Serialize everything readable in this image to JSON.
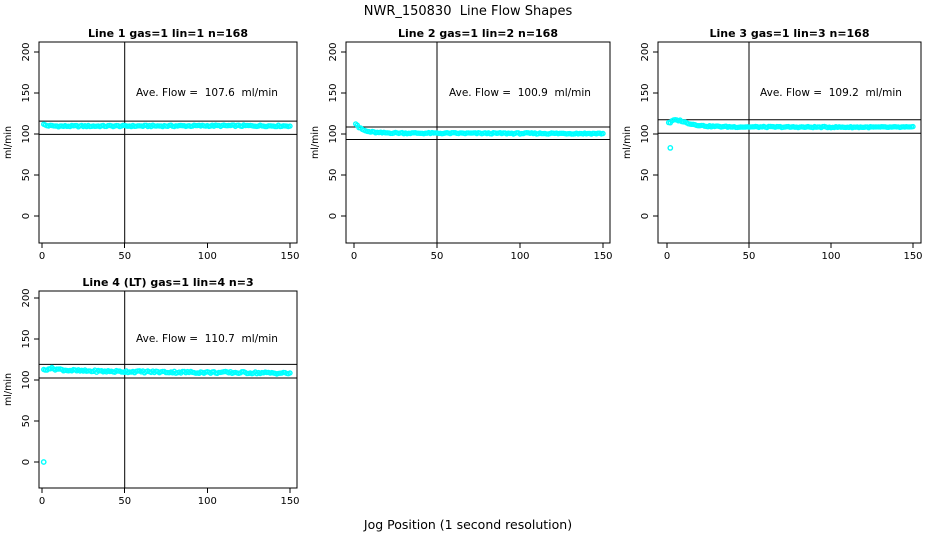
{
  "title": "NWR_150830  Line Flow Shapes",
  "xlabel": "Jog Position (1 second resolution)",
  "colors": {
    "points": "#00ffff",
    "axis": "#000000",
    "background": "#ffffff"
  },
  "axes": {
    "ylabel": "ml/min",
    "x_ticks": [
      0,
      50,
      100,
      150
    ],
    "y_ticks": [
      0,
      50,
      100,
      150,
      200
    ],
    "x_range": [
      0,
      150
    ],
    "y_range": [
      0,
      200
    ],
    "vline_x": 50
  },
  "chart_data": [
    {
      "type": "scatter",
      "title": "Line 1 gas=1 lin=1 n=168",
      "annotation": "Ave. Flow =  107.6  ml/min",
      "ave_flow": 107.6,
      "n": 168,
      "hlines": [
        115.7,
        99.5
      ],
      "vline": 50,
      "anchors": [
        [
          1,
          111.5
        ],
        [
          3,
          110.2
        ],
        [
          10,
          109.6
        ],
        [
          60,
          109.8
        ],
        [
          110,
          110.1
        ],
        [
          150,
          109.9
        ]
      ],
      "outliers": [],
      "noise": 0.9
    },
    {
      "type": "scatter",
      "title": "Line 2 gas=1 lin=2 n=168",
      "annotation": "Ave. Flow =  100.9  ml/min",
      "ave_flow": 100.9,
      "n": 168,
      "hlines": [
        108.5,
        93.3
      ],
      "vline": 50,
      "anchors": [
        [
          1,
          113
        ],
        [
          2,
          111
        ],
        [
          3,
          108
        ],
        [
          5,
          105.5
        ],
        [
          8,
          103
        ],
        [
          15,
          101.5
        ],
        [
          40,
          101
        ],
        [
          90,
          100.8
        ],
        [
          150,
          100.6
        ]
      ],
      "outliers": [],
      "noise": 0.8
    },
    {
      "type": "scatter",
      "title": "Line 3 gas=1 lin=3 n=168",
      "annotation": "Ave. Flow =  109.2  ml/min",
      "ave_flow": 109.2,
      "n": 168,
      "hlines": [
        117.4,
        101.0
      ],
      "vline": 50,
      "anchors": [
        [
          2,
          114
        ],
        [
          4,
          117
        ],
        [
          8,
          116.5
        ],
        [
          12,
          113.5
        ],
        [
          18,
          111
        ],
        [
          25,
          109.5
        ],
        [
          40,
          108.7
        ],
        [
          90,
          108.4
        ],
        [
          150,
          108.3
        ]
      ],
      "outliers": [
        [
          2,
          83
        ]
      ],
      "noise": 0.7
    },
    {
      "type": "scatter",
      "title": "Line 4 (LT) gas=1 lin=4 n=3",
      "annotation": "Ave. Flow =  110.7  ml/min",
      "ave_flow": 110.7,
      "n": 3,
      "hlines": [
        119.0,
        102.4
      ],
      "vline": 50,
      "anchors": [
        [
          2,
          112
        ],
        [
          4,
          114.5
        ],
        [
          8,
          113.5
        ],
        [
          15,
          112
        ],
        [
          25,
          111
        ],
        [
          50,
          110.3
        ],
        [
          90,
          109.4
        ],
        [
          120,
          109
        ],
        [
          150,
          108.3
        ]
      ],
      "outliers": [
        [
          1,
          0
        ]
      ],
      "noise": 1.3
    }
  ]
}
